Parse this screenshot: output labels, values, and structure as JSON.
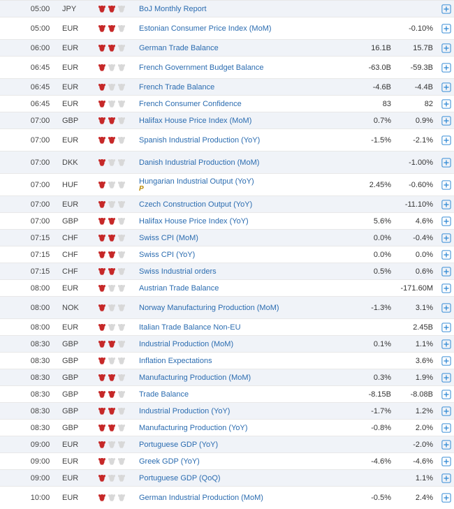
{
  "colors": {
    "bull_active": "#c62828",
    "bull_inactive": "#d8d8d8",
    "expand": "#3b8fd6",
    "link": "#2b6cb0",
    "row_even": "#f0f3f8",
    "row_odd": "#ffffff"
  },
  "rows": [
    {
      "time": "05:00",
      "currency": "JPY",
      "impact": 2,
      "event": "BoJ Monthly Report",
      "prev": "",
      "forecast": ""
    },
    {
      "time": "05:00",
      "currency": "EUR",
      "impact": 2,
      "event": "Estonian Consumer Price Index (MoM)",
      "prev": "",
      "forecast": "-0.10%",
      "tall": true,
      "justify": true
    },
    {
      "time": "06:00",
      "currency": "EUR",
      "impact": 2,
      "event": "German Trade Balance",
      "prev": "16.1B",
      "forecast": "15.7B"
    },
    {
      "time": "06:45",
      "currency": "EUR",
      "impact": 1,
      "event": "French Government Budget Balance",
      "prev": "-63.0B",
      "forecast": "-59.3B",
      "tall": true,
      "justify": true
    },
    {
      "time": "06:45",
      "currency": "EUR",
      "impact": 1,
      "event": "French Trade Balance",
      "prev": "-4.6B",
      "forecast": "-4.4B"
    },
    {
      "time": "06:45",
      "currency": "EUR",
      "impact": 1,
      "event": "French Consumer Confidence",
      "prev": "83",
      "forecast": "82"
    },
    {
      "time": "07:00",
      "currency": "GBP",
      "impact": 2,
      "event": "Halifax House Price Index (MoM)",
      "prev": "0.7%",
      "forecast": "0.9%"
    },
    {
      "time": "07:00",
      "currency": "EUR",
      "impact": 2,
      "event": "Spanish Industrial Production (YoY)",
      "prev": "-1.5%",
      "forecast": "-2.1%",
      "tall": true,
      "justify": true
    },
    {
      "time": "07:00",
      "currency": "DKK",
      "impact": 1,
      "event": "Danish Industrial Production (MoM)",
      "prev": "",
      "forecast": "-1.00%",
      "tall": true,
      "justify": true
    },
    {
      "time": "07:00",
      "currency": "HUF",
      "impact": 1,
      "event": "Hungarian Industrial Output (YoY)",
      "prev": "2.45%",
      "forecast": "-0.60%",
      "tall": true,
      "preliminary": "P"
    },
    {
      "time": "07:00",
      "currency": "EUR",
      "impact": 1,
      "event": "Czech Construction Output (YoY)",
      "prev": "",
      "forecast": "-11.10%"
    },
    {
      "time": "07:00",
      "currency": "GBP",
      "impact": 2,
      "event": "Halifax House Price Index (YoY)",
      "prev": "5.6%",
      "forecast": "4.6%"
    },
    {
      "time": "07:15",
      "currency": "CHF",
      "impact": 2,
      "event": "Swiss CPI (MoM)",
      "prev": "0.0%",
      "forecast": "-0.4%"
    },
    {
      "time": "07:15",
      "currency": "CHF",
      "impact": 2,
      "event": "Swiss CPI (YoY)",
      "prev": "0.0%",
      "forecast": "0.0%"
    },
    {
      "time": "07:15",
      "currency": "CHF",
      "impact": 2,
      "event": "Swiss Industrial orders",
      "prev": "0.5%",
      "forecast": "0.6%"
    },
    {
      "time": "08:00",
      "currency": "EUR",
      "impact": 1,
      "event": "Austrian Trade Balance",
      "prev": "",
      "forecast": "-171.60M"
    },
    {
      "time": "08:00",
      "currency": "NOK",
      "impact": 1,
      "event": "Norway Manufacturing Production (MoM)",
      "prev": "-1.3%",
      "forecast": "3.1%",
      "tall": true
    },
    {
      "time": "08:00",
      "currency": "EUR",
      "impact": 1,
      "event": "Italian Trade Balance Non-EU",
      "prev": "",
      "forecast": "2.45B"
    },
    {
      "time": "08:30",
      "currency": "GBP",
      "impact": 2,
      "event": "Industrial Production (MoM)",
      "prev": "0.1%",
      "forecast": "1.1%"
    },
    {
      "time": "08:30",
      "currency": "GBP",
      "impact": 1,
      "event": "Inflation Expectations",
      "prev": "",
      "forecast": "3.6%"
    },
    {
      "time": "08:30",
      "currency": "GBP",
      "impact": 2,
      "event": "Manufacturing Production (MoM)",
      "prev": "0.3%",
      "forecast": "1.9%"
    },
    {
      "time": "08:30",
      "currency": "GBP",
      "impact": 2,
      "event": "Trade Balance",
      "prev": "-8.15B",
      "forecast": "-8.08B"
    },
    {
      "time": "08:30",
      "currency": "GBP",
      "impact": 2,
      "event": "Industrial Production (YoY)",
      "prev": "-1.7%",
      "forecast": "1.2%"
    },
    {
      "time": "08:30",
      "currency": "GBP",
      "impact": 2,
      "event": "Manufacturing Production (YoY)",
      "prev": "-0.8%",
      "forecast": "2.0%"
    },
    {
      "time": "09:00",
      "currency": "EUR",
      "impact": 1,
      "event": "Portuguese GDP (YoY)",
      "prev": "",
      "forecast": "-2.0%"
    },
    {
      "time": "09:00",
      "currency": "EUR",
      "impact": 1,
      "event": "Greek GDP (YoY)",
      "prev": "-4.6%",
      "forecast": "-4.6%"
    },
    {
      "time": "09:00",
      "currency": "EUR",
      "impact": 1,
      "event": "Portuguese GDP (QoQ)",
      "prev": "",
      "forecast": "1.1%"
    },
    {
      "time": "10:00",
      "currency": "EUR",
      "impact": 1,
      "event": "German Industrial Production (MoM)",
      "prev": "-0.5%",
      "forecast": "2.4%",
      "tall": true,
      "justify": true
    }
  ]
}
